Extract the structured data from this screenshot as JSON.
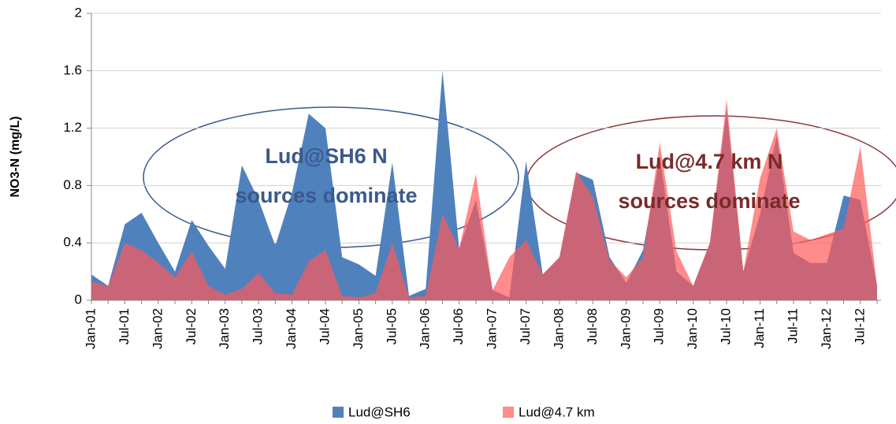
{
  "chart_data": {
    "type": "area",
    "y_label": "NO3-N (mg/L)",
    "categories": [
      "Jan-01",
      null,
      "Jul-01",
      null,
      "Jan-02",
      null,
      "Jul-02",
      null,
      "Jan-03",
      null,
      "Jul-03",
      null,
      "Jan-04",
      null,
      "Jul-04",
      null,
      "Jan-05",
      null,
      "Jul-05",
      null,
      "Jan-06",
      null,
      "Jul-06",
      null,
      "Jan-07",
      null,
      "Jul-07",
      null,
      "Jan-08",
      null,
      "Jul-08",
      null,
      "Jan-09",
      null,
      "Jul-09",
      null,
      "Jan-10",
      null,
      "Jul-10",
      null,
      "Jan-11",
      null,
      "Jul-11",
      null,
      "Jan-12",
      null,
      "Jul-12",
      null
    ],
    "series": [
      {
        "name": "Lud@SH6",
        "color": "#4f81bd",
        "values": [
          0.18,
          0.1,
          0.53,
          0.61,
          0.4,
          0.2,
          0.56,
          0.38,
          0.22,
          0.94,
          0.7,
          0.38,
          0.75,
          1.3,
          1.2,
          0.3,
          0.25,
          0.17,
          0.96,
          0.03,
          0.08,
          1.6,
          0.36,
          0.7,
          0.07,
          0.02,
          0.97,
          0.18,
          0.3,
          0.89,
          0.84,
          0.3,
          0.12,
          0.35,
          1.0,
          0.2,
          0.1,
          0.4,
          1.33,
          0.2,
          0.6,
          1.15,
          0.33,
          0.26,
          0.26,
          0.73,
          0.7,
          0.1
        ]
      },
      {
        "name": "Lud@4.7 km",
        "color": "#ff5a5a",
        "values": [
          0.13,
          0.1,
          0.4,
          0.35,
          0.26,
          0.16,
          0.34,
          0.1,
          0.04,
          0.08,
          0.19,
          0.05,
          0.04,
          0.27,
          0.35,
          0.03,
          0.02,
          0.05,
          0.4,
          0.02,
          0.03,
          0.6,
          0.36,
          0.88,
          0.07,
          0.3,
          0.42,
          0.18,
          0.3,
          0.9,
          0.72,
          0.28,
          0.16,
          0.3,
          1.1,
          0.34,
          0.1,
          0.4,
          1.4,
          0.2,
          0.85,
          1.2,
          0.48,
          0.42,
          0.46,
          0.5,
          1.07,
          0.1
        ]
      }
    ],
    "ylim": [
      0,
      2
    ],
    "yticks": [
      0,
      0.4,
      0.8,
      1.2,
      1.6,
      2
    ],
    "grid": true,
    "annotations": [
      {
        "lines": [
          "Lud@SH6 N",
          "sources dominate"
        ],
        "color": "#3a5a8c"
      },
      {
        "lines": [
          "Lud@4.7 km N",
          "sources dominate"
        ],
        "color": "#7a2a2a"
      }
    ]
  }
}
